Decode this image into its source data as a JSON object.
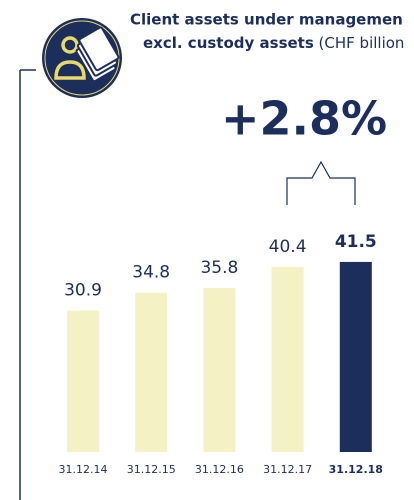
{
  "chart_data": {
    "type": "bar",
    "title": "Client assets under managemen",
    "subtitle_bold": "excl. custody assets",
    "subtitle": "(CHF billion",
    "annotation": "+2.8%",
    "categories": [
      "31.12.14",
      "31.12.15",
      "31.12.16",
      "31.12.17",
      "31.12.18"
    ],
    "values": [
      30.9,
      34.8,
      35.8,
      40.4,
      41.5
    ],
    "color": "#f4f1c4",
    "highlight_color": "#1c2f5c",
    "highlight_index": 4
  }
}
